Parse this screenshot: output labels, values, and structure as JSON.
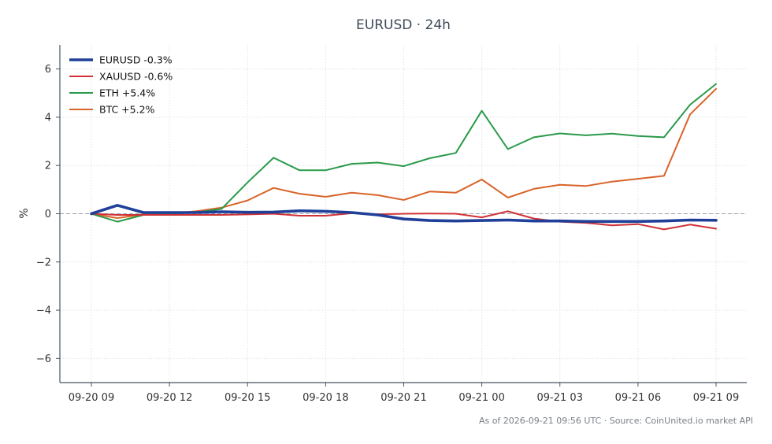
{
  "chart_data": {
    "type": "line",
    "title": "EURUSD · 24h",
    "xlabel": "",
    "ylabel": "%",
    "ylim": [
      -7,
      7
    ],
    "yticks": [
      -6,
      -4,
      -2,
      0,
      2,
      4,
      6
    ],
    "ytick_labels": [
      "−6",
      "−4",
      "−2",
      "0",
      "2",
      "4",
      "6"
    ],
    "x": [
      "09-20 09:00",
      "09-20 10:00",
      "09-20 11:00",
      "09-20 12:00",
      "09-20 13:00",
      "09-20 14:00",
      "09-20 15:00",
      "09-20 16:00",
      "09-20 17:00",
      "09-20 18:00",
      "09-20 19:00",
      "09-20 20:00",
      "09-20 21:00",
      "09-20 22:00",
      "09-20 23:00",
      "09-21 00:00",
      "09-21 01:00",
      "09-21 02:00",
      "09-21 03:00",
      "09-21 04:00",
      "09-21 05:00",
      "09-21 06:00",
      "09-21 07:00",
      "09-21 08:00",
      "09-21 09:00"
    ],
    "xticks": [
      "09-20 09",
      "09-20 12",
      "09-20 15",
      "09-20 18",
      "09-20 21",
      "09-21 00",
      "09-21 03",
      "09-21 06",
      "09-21 09"
    ],
    "grid": true,
    "zero_line": true,
    "legend_position": "top-left",
    "series": [
      {
        "name": "EURUSD -0.3%",
        "color": "#1f3f99",
        "emphasis": true,
        "values": [
          0.0,
          0.35,
          0.05,
          0.05,
          0.05,
          0.08,
          0.06,
          0.07,
          0.12,
          0.1,
          0.05,
          -0.05,
          -0.22,
          -0.28,
          -0.3,
          -0.28,
          -0.26,
          -0.3,
          -0.3,
          -0.32,
          -0.32,
          -0.32,
          -0.3,
          -0.26,
          -0.27
        ]
      },
      {
        "name": "XAUUSD -0.6%",
        "color": "#d03236",
        "values": [
          0.0,
          -0.05,
          -0.05,
          -0.05,
          -0.05,
          -0.05,
          -0.03,
          0.0,
          -0.08,
          -0.08,
          0.02,
          -0.02,
          0.0,
          0.01,
          0.0,
          -0.15,
          0.1,
          -0.2,
          -0.33,
          -0.38,
          -0.48,
          -0.43,
          -0.65,
          -0.45,
          -0.62
        ]
      },
      {
        "name": "ETH +5.4%",
        "color": "#2a9a4a",
        "values": [
          0.0,
          -0.33,
          -0.05,
          0.0,
          0.05,
          0.2,
          1.3,
          2.32,
          1.8,
          1.8,
          2.07,
          2.12,
          1.97,
          2.3,
          2.52,
          4.27,
          2.68,
          3.17,
          3.33,
          3.25,
          3.32,
          3.22,
          3.17,
          4.52,
          5.38
        ]
      },
      {
        "name": "BTC +5.2%",
        "color": "#d8642a",
        "values": [
          0.0,
          -0.18,
          -0.03,
          0.0,
          0.1,
          0.25,
          0.55,
          1.07,
          0.83,
          0.7,
          0.87,
          0.77,
          0.57,
          0.92,
          0.87,
          1.42,
          0.67,
          1.03,
          1.2,
          1.15,
          1.33,
          1.45,
          1.57,
          4.12,
          5.18
        ]
      }
    ]
  },
  "footer": "As of 2026-09-21 09:56 UTC · Source: CoinUnited.io market API"
}
